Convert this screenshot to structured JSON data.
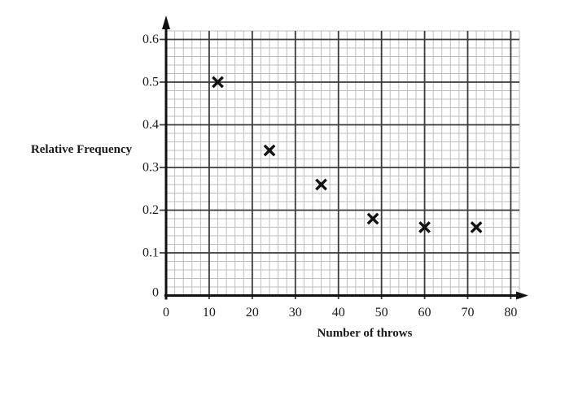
{
  "chart_data": {
    "type": "scatter",
    "title": "",
    "xlabel": "Number of throws",
    "ylabel": "Relative Frequency",
    "points": [
      {
        "x": 12,
        "y": 0.5
      },
      {
        "x": 24,
        "y": 0.34
      },
      {
        "x": 36,
        "y": 0.26
      },
      {
        "x": 48,
        "y": 0.18
      },
      {
        "x": 60,
        "y": 0.16
      },
      {
        "x": 72,
        "y": 0.16
      }
    ],
    "marker": "bold-x-cross",
    "xlim": [
      0,
      82
    ],
    "ylim": [
      0,
      0.62
    ],
    "x_ticks": {
      "values": [
        0,
        10,
        20,
        30,
        40,
        50,
        60,
        70,
        80
      ],
      "labels": [
        "0",
        "10",
        "20",
        "30",
        "40",
        "50",
        "60",
        "70",
        "80"
      ]
    },
    "y_ticks": {
      "values": [
        0,
        0.1,
        0.2,
        0.3,
        0.4,
        0.5,
        0.6
      ],
      "labels": [
        "0",
        "0.1",
        "0.2",
        "0.3",
        "0.4",
        "0.5",
        "0.6"
      ]
    },
    "grid": {
      "on": true,
      "minor_step_x": 2,
      "minor_step_y": 0.02,
      "major_step_x": 10,
      "major_step_y": 0.1,
      "minor_color": "#bdbdbd",
      "major_color": "#3a3a3a"
    },
    "colors": {
      "background": "#ffffff",
      "axis": "#111111",
      "marker": "#111111",
      "text": "#1a1a1a"
    },
    "legend_position": "none"
  }
}
